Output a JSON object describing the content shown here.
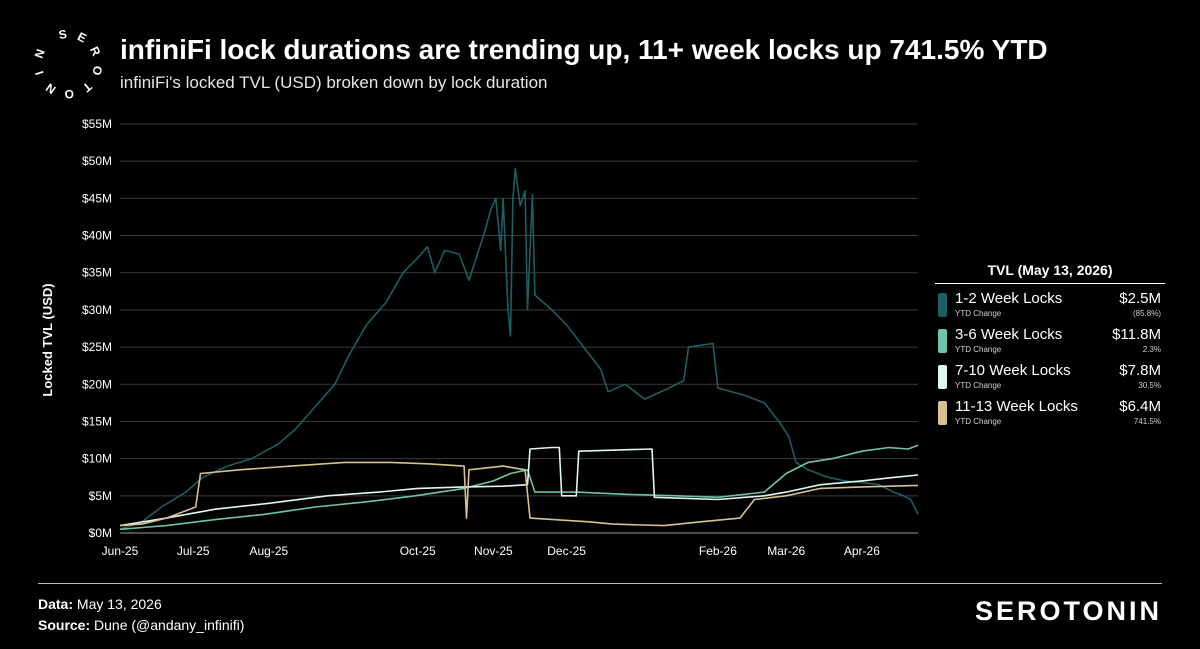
{
  "header": {
    "logo_text": "SEROTONIN",
    "title": "infiniFi lock durations are trending up, 11+ week locks up 741.5% YTD",
    "subtitle": "infiniFi's locked TVL (USD) broken down by lock duration"
  },
  "legend": {
    "title": "TVL (May 13, 2026)",
    "items": [
      {
        "name": "1-2 Week Locks",
        "sub": "YTD Change",
        "value": "$2.5M",
        "change": "(85.8%)",
        "color": "#1c5f63"
      },
      {
        "name": "3-6 Week Locks",
        "sub": "YTD Change",
        "value": "$11.8M",
        "change": "2.3%",
        "color": "#6fc3ad"
      },
      {
        "name": "7-10 Week Locks",
        "sub": "YTD Change",
        "value": "$7.8M",
        "change": "30.5%",
        "color": "#dff7f0"
      },
      {
        "name": "11-13 Week Locks",
        "sub": "YTD Change",
        "value": "$6.4M",
        "change": "741.5%",
        "color": "#d9c18f"
      }
    ]
  },
  "footer": {
    "data_label": "Data:",
    "data_value": "May 13, 2026",
    "source_label": "Source:",
    "source_value": "Dune (@andany_infinifi)",
    "brand": "SEROTONIN"
  },
  "chart_data": {
    "type": "line",
    "ylabel": "Locked TVL (USD)",
    "xlabel": "",
    "ylim": [
      0,
      55
    ],
    "y_unit": "$M",
    "y_ticks": [
      "$0M",
      "$5M",
      "$10M",
      "$15M",
      "$20M",
      "$25M",
      "$30M",
      "$35M",
      "$40M",
      "$45M",
      "$50M",
      "$55M"
    ],
    "x_tick_labels": [
      "Jun-25",
      "Jul-25",
      "Aug-25",
      "Oct-25",
      "Nov-25",
      "Dec-25",
      "Feb-26",
      "Mar-26",
      "Apr-26"
    ],
    "x_tick_dates": [
      "2025-06-01",
      "2025-07-01",
      "2025-08-01",
      "2025-10-01",
      "2025-11-01",
      "2025-12-01",
      "2026-02-01",
      "2026-03-01",
      "2026-04-01"
    ],
    "x_range": [
      "2025-06-01",
      "2026-04-24"
    ],
    "grid": "horizontal",
    "series": [
      {
        "name": "1-2 Week Locks",
        "color": "#1c5f63",
        "points": [
          [
            "2025-06-01",
            0.5
          ],
          [
            "2025-06-10",
            1.5
          ],
          [
            "2025-06-18",
            3.5
          ],
          [
            "2025-06-28",
            5.5
          ],
          [
            "2025-07-05",
            7.5
          ],
          [
            "2025-07-15",
            9.0
          ],
          [
            "2025-07-25",
            10.0
          ],
          [
            "2025-08-05",
            12.0
          ],
          [
            "2025-08-12",
            14.0
          ],
          [
            "2025-08-20",
            17.0
          ],
          [
            "2025-08-28",
            20.0
          ],
          [
            "2025-09-03",
            24.0
          ],
          [
            "2025-09-10",
            28.0
          ],
          [
            "2025-09-18",
            31.0
          ],
          [
            "2025-09-25",
            35.0
          ],
          [
            "2025-10-01",
            37.0
          ],
          [
            "2025-10-05",
            38.5
          ],
          [
            "2025-10-08",
            35.0
          ],
          [
            "2025-10-12",
            38.0
          ],
          [
            "2025-10-18",
            37.5
          ],
          [
            "2025-10-22",
            34.0
          ],
          [
            "2025-10-26",
            38.0
          ],
          [
            "2025-10-28",
            40.0
          ],
          [
            "2025-10-31",
            43.5
          ],
          [
            "2025-11-02",
            45.0
          ],
          [
            "2025-11-04",
            38.0
          ],
          [
            "2025-11-05",
            45.0
          ],
          [
            "2025-11-07",
            30.0
          ],
          [
            "2025-11-08",
            26.5
          ],
          [
            "2025-11-09",
            45.0
          ],
          [
            "2025-11-10",
            49.0
          ],
          [
            "2025-11-12",
            44.0
          ],
          [
            "2025-11-14",
            46.0
          ],
          [
            "2025-11-15",
            30.0
          ],
          [
            "2025-11-17",
            45.5
          ],
          [
            "2025-11-18",
            32.0
          ],
          [
            "2025-11-25",
            30.0
          ],
          [
            "2025-12-01",
            28.0
          ],
          [
            "2025-12-08",
            25.0
          ],
          [
            "2025-12-15",
            22.0
          ],
          [
            "2025-12-18",
            19.0
          ],
          [
            "2025-12-25",
            20.0
          ],
          [
            "2026-01-02",
            18.0
          ],
          [
            "2026-01-12",
            19.5
          ],
          [
            "2026-01-18",
            20.5
          ],
          [
            "2026-01-20",
            25.0
          ],
          [
            "2026-01-30",
            25.5
          ],
          [
            "2026-02-01",
            19.5
          ],
          [
            "2026-02-12",
            18.5
          ],
          [
            "2026-02-20",
            17.5
          ],
          [
            "2026-02-26",
            15.0
          ],
          [
            "2026-03-02",
            13.0
          ],
          [
            "2026-03-05",
            9.5
          ],
          [
            "2026-03-10",
            8.5
          ],
          [
            "2026-03-18",
            7.5
          ],
          [
            "2026-03-25",
            7.0
          ],
          [
            "2026-04-01",
            6.8
          ],
          [
            "2026-04-08",
            6.5
          ],
          [
            "2026-04-14",
            5.5
          ],
          [
            "2026-04-18",
            5.0
          ],
          [
            "2026-04-21",
            4.5
          ],
          [
            "2026-04-24",
            2.5
          ]
        ]
      },
      {
        "name": "3-6 Week Locks",
        "color": "#6fc3ad",
        "points": [
          [
            "2025-06-01",
            0.5
          ],
          [
            "2025-06-20",
            1.0
          ],
          [
            "2025-07-10",
            1.8
          ],
          [
            "2025-07-30",
            2.5
          ],
          [
            "2025-08-20",
            3.5
          ],
          [
            "2025-09-10",
            4.2
          ],
          [
            "2025-09-30",
            5.0
          ],
          [
            "2025-10-20",
            6.0
          ],
          [
            "2025-11-01",
            7.0
          ],
          [
            "2025-11-08",
            8.0
          ],
          [
            "2025-11-15",
            8.5
          ],
          [
            "2025-11-18",
            5.5
          ],
          [
            "2025-12-05",
            5.5
          ],
          [
            "2025-12-25",
            5.2
          ],
          [
            "2026-01-15",
            5.0
          ],
          [
            "2026-02-01",
            4.8
          ],
          [
            "2026-02-20",
            5.5
          ],
          [
            "2026-03-01",
            8.0
          ],
          [
            "2026-03-10",
            9.5
          ],
          [
            "2026-03-20",
            10.0
          ],
          [
            "2026-04-01",
            11.0
          ],
          [
            "2026-04-12",
            11.5
          ],
          [
            "2026-04-20",
            11.3
          ],
          [
            "2026-04-24",
            11.8
          ]
        ]
      },
      {
        "name": "7-10 Week Locks",
        "color": "#dff7f0",
        "points": [
          [
            "2025-06-01",
            1.0
          ],
          [
            "2025-06-20",
            2.0
          ],
          [
            "2025-07-10",
            3.2
          ],
          [
            "2025-08-01",
            4.0
          ],
          [
            "2025-08-25",
            5.0
          ],
          [
            "2025-09-15",
            5.5
          ],
          [
            "2025-10-01",
            6.0
          ],
          [
            "2025-10-20",
            6.2
          ],
          [
            "2025-11-05",
            6.3
          ],
          [
            "2025-11-15",
            6.5
          ],
          [
            "2025-11-16",
            11.3
          ],
          [
            "2025-11-25",
            11.5
          ],
          [
            "2025-11-28",
            11.5
          ],
          [
            "2025-11-29",
            5.0
          ],
          [
            "2025-12-05",
            5.0
          ],
          [
            "2025-12-06",
            11.0
          ],
          [
            "2026-01-05",
            11.3
          ],
          [
            "2026-01-06",
            4.8
          ],
          [
            "2026-02-01",
            4.5
          ],
          [
            "2026-02-20",
            5.0
          ],
          [
            "2026-03-01",
            5.5
          ],
          [
            "2026-03-15",
            6.5
          ],
          [
            "2026-04-01",
            7.0
          ],
          [
            "2026-04-15",
            7.5
          ],
          [
            "2026-04-24",
            7.8
          ]
        ]
      },
      {
        "name": "11-13 Week Locks",
        "color": "#d9c18f",
        "points": [
          [
            "2025-06-01",
            1.0
          ],
          [
            "2025-06-10",
            1.2
          ],
          [
            "2025-06-20",
            2.0
          ],
          [
            "2025-07-02",
            3.5
          ],
          [
            "2025-07-04",
            8.0
          ],
          [
            "2025-07-20",
            8.5
          ],
          [
            "2025-08-10",
            9.0
          ],
          [
            "2025-09-01",
            9.5
          ],
          [
            "2025-09-20",
            9.5
          ],
          [
            "2025-10-05",
            9.3
          ],
          [
            "2025-10-20",
            9.0
          ],
          [
            "2025-10-21",
            2.0
          ],
          [
            "2025-10-22",
            8.5
          ],
          [
            "2025-11-05",
            9.0
          ],
          [
            "2025-11-14",
            8.5
          ],
          [
            "2025-11-16",
            2.0
          ],
          [
            "2025-12-10",
            1.5
          ],
          [
            "2025-12-20",
            1.2
          ],
          [
            "2026-01-10",
            1.0
          ],
          [
            "2026-01-25",
            1.5
          ],
          [
            "2026-02-10",
            2.0
          ],
          [
            "2026-02-16",
            4.5
          ],
          [
            "2026-03-01",
            5.0
          ],
          [
            "2026-03-15",
            6.0
          ],
          [
            "2026-04-01",
            6.2
          ],
          [
            "2026-04-24",
            6.4
          ]
        ]
      }
    ]
  }
}
